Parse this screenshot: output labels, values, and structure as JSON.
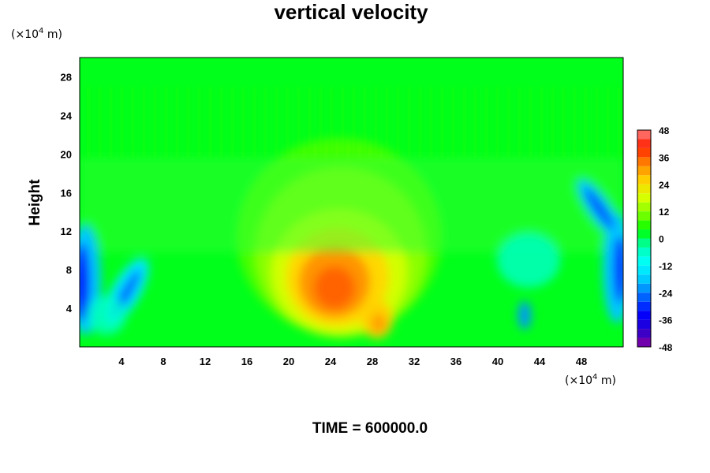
{
  "chart_data": {
    "type": "heatmap",
    "title": "vertical velocity",
    "ylabel": "Height",
    "xlabel": "",
    "x_unit": "(×10⁴ m)",
    "y_unit": "(×10⁴ m)",
    "x_unit_base": "(×10",
    "x_unit_exp": "4",
    "x_unit_tail": " m)",
    "y_unit_base": "(×10",
    "y_unit_exp": "4",
    "y_unit_tail": " m)",
    "xlim": [
      0,
      52
    ],
    "ylim": [
      0,
      30
    ],
    "x_ticks": [
      4,
      8,
      12,
      16,
      20,
      24,
      28,
      32,
      36,
      40,
      44,
      48
    ],
    "y_ticks": [
      4,
      8,
      12,
      16,
      20,
      24,
      28
    ],
    "colorbar": {
      "min": -48,
      "max": 48,
      "step": 4,
      "ticks": [
        48,
        36,
        24,
        12,
        0,
        -12,
        -24,
        -36,
        -48
      ]
    },
    "features": [
      {
        "name": "updraft core",
        "x": 24,
        "y": 6,
        "value": 36
      },
      {
        "name": "updraft small core",
        "x": 28.5,
        "y": 2.5,
        "value": 30
      },
      {
        "name": "downdraft left edge",
        "x": 0.5,
        "y": 7,
        "value": -40
      },
      {
        "name": "downdraft left streak",
        "x": 5,
        "y": 6,
        "value": -30
      },
      {
        "name": "downdraft right edge",
        "x": 51.5,
        "y": 6,
        "value": -40
      },
      {
        "name": "downdraft right streak",
        "x": 49,
        "y": 15,
        "value": -30
      }
    ],
    "footer": "TIME = 600000.0"
  },
  "palette": [
    "#8c00a0",
    "#2a00d0",
    "#0000ff",
    "#0064ff",
    "#00c8ff",
    "#00ffff",
    "#00ffb0",
    "#00ff00",
    "#7dff00",
    "#dcff00",
    "#ffd000",
    "#ff8000",
    "#ff2000",
    "#ff8080"
  ]
}
